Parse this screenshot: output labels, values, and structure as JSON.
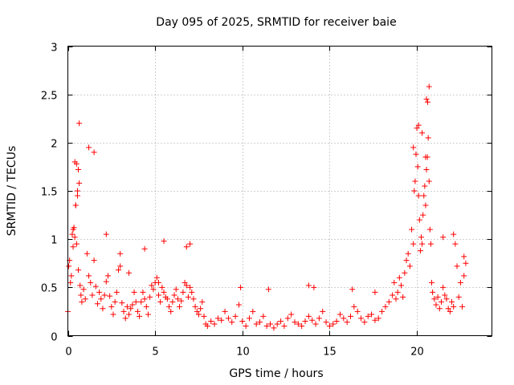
{
  "chart_data": {
    "type": "scatter",
    "title": "Day 095 of 2025, SRMTID for receiver baie",
    "xlabel": "GPS time / hours",
    "ylabel": "SRMTID / TECUs",
    "xlim": [
      0,
      24.3
    ],
    "ylim": [
      0,
      3
    ],
    "x_ticks": [
      0,
      5,
      10,
      15,
      20
    ],
    "x_tick_labels": [
      "0",
      "5",
      "10",
      "15",
      "20"
    ],
    "y_ticks": [
      0,
      0.5,
      1,
      1.5,
      2,
      2.5,
      3
    ],
    "y_tick_labels": [
      "0",
      "0.5",
      "1",
      "1.5",
      "2",
      "2.5",
      "3"
    ],
    "grid": true,
    "marker": "+",
    "series": [
      {
        "name": "SRMTID",
        "color": "#ff0000",
        "x": [
          0.0,
          0.05,
          0.1,
          0.15,
          0.2,
          0.25,
          0.3,
          0.35,
          0.4,
          0.45,
          0.5,
          0.55,
          0.6,
          0.65,
          0.7,
          0.75,
          0.8,
          0.9,
          1.0,
          1.1,
          1.2,
          1.3,
          1.4,
          1.5,
          1.6,
          1.7,
          1.8,
          1.9,
          2.0,
          2.1,
          2.2,
          2.3,
          2.4,
          2.5,
          2.6,
          2.7,
          2.8,
          2.9,
          3.0,
          3.1,
          3.2,
          3.3,
          3.4,
          3.5,
          3.6,
          3.7,
          3.8,
          3.9,
          4.0,
          4.1,
          4.2,
          4.3,
          4.4,
          4.5,
          4.6,
          4.7,
          4.8,
          4.9,
          5.0,
          5.1,
          5.2,
          5.3,
          5.4,
          5.5,
          5.6,
          5.7,
          5.8,
          5.9,
          6.0,
          6.1,
          6.2,
          6.3,
          6.4,
          6.5,
          6.6,
          6.7,
          6.8,
          6.9,
          7.0,
          7.1,
          7.2,
          7.3,
          7.4,
          7.5,
          7.6,
          7.7,
          7.8,
          7.9,
          8.0,
          8.2,
          8.4,
          8.6,
          8.8,
          9.0,
          9.2,
          9.4,
          9.6,
          9.8,
          10.0,
          10.2,
          10.4,
          10.6,
          10.8,
          11.0,
          11.2,
          11.4,
          11.6,
          11.8,
          12.0,
          12.2,
          12.4,
          12.6,
          12.8,
          13.0,
          13.2,
          13.4,
          13.6,
          13.8,
          14.0,
          14.2,
          14.4,
          14.6,
          14.8,
          15.0,
          15.2,
          15.4,
          15.6,
          15.8,
          16.0,
          16.2,
          16.4,
          16.6,
          16.8,
          17.0,
          17.2,
          17.4,
          17.6,
          17.8,
          18.0,
          18.2,
          18.4,
          18.6,
          18.7,
          18.8,
          18.9,
          19.0,
          19.1,
          19.2,
          19.3,
          19.4,
          19.5,
          19.6,
          19.7,
          19.8,
          19.85,
          19.9,
          19.95,
          20.0,
          20.05,
          20.1,
          20.15,
          20.2,
          20.25,
          20.3,
          20.35,
          20.4,
          20.45,
          20.5,
          20.55,
          20.6,
          20.65,
          20.7,
          20.75,
          20.8,
          20.85,
          20.9,
          21.0,
          21.1,
          21.2,
          21.3,
          21.4,
          21.5,
          21.6,
          21.7,
          21.8,
          21.9,
          22.0,
          22.1,
          22.2,
          22.3,
          22.4,
          22.5,
          22.6,
          22.7,
          22.8,
          0.4,
          0.5,
          0.6,
          0.45,
          0.55,
          0.3,
          0.65,
          1.2,
          1.5,
          2.2,
          3.0,
          3.5,
          4.4,
          5.2,
          5.5,
          6.8,
          7.0,
          19.8,
          20.1,
          20.3,
          20.5,
          20.55,
          20.62,
          20.7,
          21.5,
          22.1,
          22.7,
          9.9,
          11.5,
          13.8,
          14.1,
          16.3,
          17.6
        ],
        "y": [
          0.25,
          0.72,
          0.78,
          0.55,
          0.62,
          1.05,
          0.92,
          1.12,
          1.02,
          1.35,
          0.95,
          1.45,
          0.68,
          1.58,
          0.52,
          0.42,
          0.35,
          0.48,
          0.38,
          0.85,
          0.62,
          0.55,
          0.42,
          0.78,
          0.51,
          0.33,
          0.45,
          0.38,
          0.28,
          0.42,
          0.56,
          0.62,
          0.41,
          0.3,
          0.22,
          0.35,
          0.45,
          0.68,
          0.72,
          0.34,
          0.25,
          0.18,
          0.3,
          0.22,
          0.28,
          0.32,
          0.45,
          0.35,
          0.25,
          0.2,
          0.35,
          0.45,
          0.38,
          0.3,
          0.22,
          0.4,
          0.52,
          0.48,
          0.55,
          0.6,
          0.42,
          0.35,
          0.5,
          0.45,
          0.4,
          0.38,
          0.3,
          0.25,
          0.35,
          0.42,
          0.48,
          0.38,
          0.3,
          0.36,
          0.45,
          0.55,
          0.52,
          0.4,
          0.5,
          0.45,
          0.38,
          0.3,
          0.25,
          0.22,
          0.28,
          0.35,
          0.2,
          0.12,
          0.1,
          0.15,
          0.12,
          0.18,
          0.16,
          0.25,
          0.18,
          0.14,
          0.2,
          0.32,
          0.15,
          0.1,
          0.18,
          0.25,
          0.12,
          0.14,
          0.2,
          0.1,
          0.12,
          0.08,
          0.12,
          0.15,
          0.1,
          0.18,
          0.22,
          0.14,
          0.12,
          0.1,
          0.15,
          0.2,
          0.16,
          0.12,
          0.18,
          0.25,
          0.14,
          0.1,
          0.12,
          0.15,
          0.22,
          0.18,
          0.14,
          0.2,
          0.3,
          0.25,
          0.18,
          0.14,
          0.2,
          0.22,
          0.16,
          0.18,
          0.25,
          0.3,
          0.35,
          0.42,
          0.55,
          0.38,
          0.45,
          0.6,
          0.52,
          0.4,
          0.65,
          0.78,
          0.85,
          0.72,
          1.1,
          0.95,
          1.5,
          1.6,
          1.88,
          2.15,
          1.75,
          1.45,
          1.2,
          0.88,
          1.02,
          0.95,
          1.25,
          1.45,
          1.55,
          1.35,
          1.72,
          1.85,
          2.05,
          1.6,
          1.1,
          0.95,
          0.55,
          0.45,
          0.38,
          0.32,
          0.4,
          0.28,
          0.35,
          0.5,
          0.42,
          0.38,
          0.28,
          0.25,
          0.35,
          0.3,
          0.95,
          0.72,
          0.4,
          0.55,
          0.3,
          0.62,
          0.75,
          1.8,
          1.78,
          1.72,
          1.35,
          1.5,
          1.1,
          2.2,
          1.95,
          1.9,
          1.05,
          0.85,
          0.65,
          0.9,
          0.55,
          0.98,
          0.92,
          0.95,
          1.95,
          2.18,
          2.1,
          1.85,
          2.45,
          2.42,
          2.58,
          1.02,
          1.05,
          0.82,
          0.5,
          0.48,
          0.52,
          0.5,
          0.48,
          0.45
        ]
      }
    ]
  }
}
